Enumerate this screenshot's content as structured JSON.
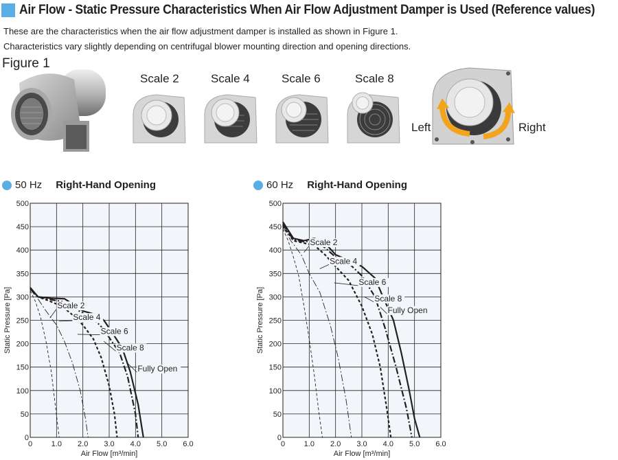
{
  "header": {
    "title": "Air Flow - Static Pressure Characteristics When Air Flow Adjustment Damper is Used (Reference values)",
    "intro_line1": "These are the characteristics when the air flow adjustment damper is installed as shown in Figure 1.",
    "intro_line2": "Characteristics vary slightly depending on centrifugal blower mounting direction and opening directions."
  },
  "figure": {
    "label": "Figure 1",
    "scales": [
      "Scale 2",
      "Scale 4",
      "Scale 6",
      "Scale 8"
    ],
    "left_label": "Left",
    "right_label": "Right"
  },
  "chart_data": [
    {
      "type": "line",
      "frequency": "50 Hz",
      "opening": "Right-Hand Opening",
      "xlabel": "Air Flow [m³/min]",
      "ylabel": "Static Pressure [Pa]",
      "xlim": [
        0,
        6
      ],
      "ylim": [
        0,
        500
      ],
      "xticks": [
        0,
        1.0,
        2.0,
        3.0,
        4.0,
        5.0,
        6.0
      ],
      "yticks": [
        0,
        50,
        100,
        150,
        200,
        250,
        300,
        350,
        400,
        450,
        500
      ],
      "grid": true,
      "series": [
        {
          "name": "Fully Open",
          "style": "solid",
          "points": [
            [
              0,
              320
            ],
            [
              0.3,
              300
            ],
            [
              0.8,
              297
            ],
            [
              1.3,
              296
            ],
            [
              1.6,
              285
            ],
            [
              2.0,
              270
            ],
            [
              2.5,
              262
            ],
            [
              2.8,
              250
            ],
            [
              3.1,
              225
            ],
            [
              3.5,
              190
            ],
            [
              3.8,
              140
            ],
            [
              4.1,
              70
            ],
            [
              4.3,
              0
            ]
          ]
        },
        {
          "name": "Scale 8",
          "style": "dashdot",
          "points": [
            [
              0,
              318
            ],
            [
              0.3,
              300
            ],
            [
              0.8,
              294
            ],
            [
              1.2,
              290
            ],
            [
              1.5,
              282
            ],
            [
              2.0,
              265
            ],
            [
              2.5,
              248
            ],
            [
              2.8,
              230
            ],
            [
              3.1,
              205
            ],
            [
              3.4,
              180
            ],
            [
              3.7,
              130
            ],
            [
              4.0,
              50
            ],
            [
              4.1,
              0
            ]
          ]
        },
        {
          "name": "Scale 6",
          "style": "dashed",
          "points": [
            [
              0,
              318
            ],
            [
              0.3,
              300
            ],
            [
              0.7,
              292
            ],
            [
              1.2,
              280
            ],
            [
              1.6,
              262
            ],
            [
              2.0,
              240
            ],
            [
              2.4,
              210
            ],
            [
              2.7,
              170
            ],
            [
              3.0,
              110
            ],
            [
              3.2,
              50
            ],
            [
              3.3,
              0
            ]
          ]
        },
        {
          "name": "Scale 4",
          "style": "dashdot-thin",
          "points": [
            [
              0,
              316
            ],
            [
              0.3,
              295
            ],
            [
              0.6,
              270
            ],
            [
              1.0,
              240
            ],
            [
              1.3,
              205
            ],
            [
              1.6,
              160
            ],
            [
              1.9,
              100
            ],
            [
              2.1,
              40
            ],
            [
              2.2,
              0
            ]
          ]
        },
        {
          "name": "Scale 2",
          "style": "dashed-thin",
          "points": [
            [
              0,
              313
            ],
            [
              0.2,
              290
            ],
            [
              0.4,
              255
            ],
            [
              0.6,
              205
            ],
            [
              0.8,
              140
            ],
            [
              0.95,
              70
            ],
            [
              1.1,
              0
            ]
          ]
        }
      ],
      "annotations": [
        "Scale 2",
        "Scale 4",
        "Scale 6",
        "Scale 8",
        "Fully Open"
      ]
    },
    {
      "type": "line",
      "frequency": "60 Hz",
      "opening": "Right-Hand Opening",
      "xlabel": "Air Flow [m³/min]",
      "ylabel": "Static Pressure [Pa]",
      "xlim": [
        0,
        6
      ],
      "ylim": [
        0,
        500
      ],
      "xticks": [
        0,
        1.0,
        2.0,
        3.0,
        4.0,
        5.0,
        6.0
      ],
      "yticks": [
        0,
        50,
        100,
        150,
        200,
        250,
        300,
        350,
        400,
        450,
        500
      ],
      "grid": true,
      "series": [
        {
          "name": "Fully Open",
          "style": "solid",
          "points": [
            [
              0,
              460
            ],
            [
              0.4,
              425
            ],
            [
              0.8,
              420
            ],
            [
              1.2,
              425
            ],
            [
              1.6,
              415
            ],
            [
              2.0,
              390
            ],
            [
              2.5,
              378
            ],
            [
              3.0,
              365
            ],
            [
              3.5,
              340
            ],
            [
              3.8,
              300
            ],
            [
              4.2,
              250
            ],
            [
              4.5,
              180
            ],
            [
              4.8,
              100
            ],
            [
              5.0,
              40
            ],
            [
              5.2,
              0
            ]
          ]
        },
        {
          "name": "Scale 8",
          "style": "dashdot",
          "points": [
            [
              0,
              455
            ],
            [
              0.4,
              422
            ],
            [
              0.8,
              418
            ],
            [
              1.2,
              420
            ],
            [
              1.6,
              405
            ],
            [
              2.0,
              385
            ],
            [
              2.5,
              372
            ],
            [
              3.0,
              345
            ],
            [
              3.5,
              300
            ],
            [
              3.9,
              230
            ],
            [
              4.3,
              150
            ],
            [
              4.7,
              60
            ],
            [
              4.9,
              0
            ]
          ]
        },
        {
          "name": "Scale 6",
          "style": "dashed",
          "points": [
            [
              0,
              452
            ],
            [
              0.4,
              420
            ],
            [
              0.8,
              415
            ],
            [
              1.2,
              410
            ],
            [
              1.6,
              390
            ],
            [
              2.0,
              365
            ],
            [
              2.5,
              335
            ],
            [
              3.0,
              280
            ],
            [
              3.4,
              220
            ],
            [
              3.7,
              150
            ],
            [
              3.95,
              60
            ],
            [
              4.1,
              0
            ]
          ]
        },
        {
          "name": "Scale 4",
          "style": "dashdot-thin",
          "points": [
            [
              0,
              450
            ],
            [
              0.3,
              420
            ],
            [
              0.7,
              390
            ],
            [
              1.0,
              350
            ],
            [
              1.4,
              310
            ],
            [
              1.8,
              240
            ],
            [
              2.1,
              170
            ],
            [
              2.4,
              80
            ],
            [
              2.6,
              0
            ]
          ]
        },
        {
          "name": "Scale 2",
          "style": "dashed-thin",
          "points": [
            [
              0,
              445
            ],
            [
              0.2,
              420
            ],
            [
              0.4,
              385
            ],
            [
              0.6,
              345
            ],
            [
              0.8,
              280
            ],
            [
              1.0,
              210
            ],
            [
              1.2,
              130
            ],
            [
              1.35,
              60
            ],
            [
              1.5,
              0
            ]
          ]
        }
      ],
      "annotations": [
        "Scale 2",
        "Scale 4",
        "Scale 6",
        "Scale 8",
        "Fully Open"
      ]
    }
  ]
}
